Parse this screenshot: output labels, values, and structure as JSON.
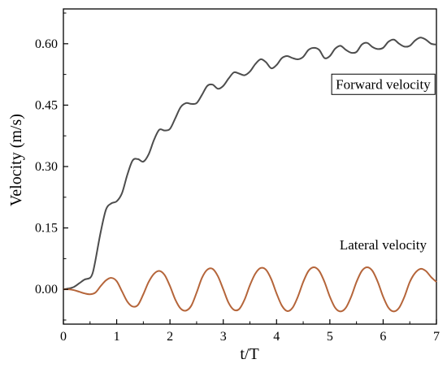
{
  "chart_data": {
    "type": "line",
    "xlabel": "t/T",
    "ylabel": "Velocity (m/s)",
    "xlim": [
      0,
      7
    ],
    "ylim": [
      -0.085,
      0.685
    ],
    "x_ticks": [
      0,
      1,
      2,
      3,
      4,
      5,
      6,
      7
    ],
    "x_tick_labels": [
      "0",
      "1",
      "2",
      "3",
      "4",
      "5",
      "6",
      "7"
    ],
    "y_ticks": [
      0.0,
      0.15,
      0.3,
      0.45,
      0.6
    ],
    "y_tick_labels": [
      "0.00",
      "0.15",
      "0.30",
      "0.45",
      "0.60"
    ],
    "grid": false,
    "series": [
      {
        "name": "Forward velocity",
        "color": "#4d4d4d",
        "x": [
          0,
          0.1,
          0.2,
          0.3,
          0.4,
          0.5,
          0.55,
          0.6,
          0.7,
          0.8,
          0.9,
          1.0,
          1.1,
          1.2,
          1.3,
          1.4,
          1.5,
          1.6,
          1.7,
          1.8,
          1.9,
          2.0,
          2.1,
          2.2,
          2.3,
          2.4,
          2.5,
          2.6,
          2.7,
          2.8,
          2.9,
          3.0,
          3.1,
          3.2,
          3.3,
          3.4,
          3.5,
          3.6,
          3.7,
          3.8,
          3.9,
          4.0,
          4.1,
          4.2,
          4.3,
          4.4,
          4.5,
          4.6,
          4.7,
          4.8,
          4.9,
          5.0,
          5.1,
          5.2,
          5.3,
          5.4,
          5.5,
          5.6,
          5.7,
          5.8,
          5.9,
          6.0,
          6.1,
          6.2,
          6.3,
          6.4,
          6.5,
          6.6,
          6.7,
          6.8,
          6.9,
          7.0
        ],
        "y": [
          0.0,
          0.002,
          0.006,
          0.015,
          0.024,
          0.028,
          0.04,
          0.07,
          0.14,
          0.195,
          0.21,
          0.215,
          0.235,
          0.28,
          0.315,
          0.318,
          0.312,
          0.33,
          0.365,
          0.39,
          0.388,
          0.392,
          0.418,
          0.445,
          0.455,
          0.453,
          0.455,
          0.475,
          0.497,
          0.5,
          0.49,
          0.497,
          0.515,
          0.53,
          0.527,
          0.523,
          0.532,
          0.55,
          0.562,
          0.555,
          0.54,
          0.548,
          0.565,
          0.57,
          0.565,
          0.562,
          0.568,
          0.585,
          0.59,
          0.585,
          0.565,
          0.57,
          0.588,
          0.595,
          0.585,
          0.578,
          0.58,
          0.598,
          0.602,
          0.592,
          0.587,
          0.59,
          0.605,
          0.61,
          0.6,
          0.593,
          0.595,
          0.608,
          0.615,
          0.61,
          0.6,
          0.598
        ]
      },
      {
        "name": "Lateral velocity",
        "color": "#b5653a",
        "x": [
          0,
          0.1,
          0.2,
          0.3,
          0.4,
          0.5,
          0.6,
          0.7,
          0.8,
          0.9,
          1.0,
          1.1,
          1.2,
          1.3,
          1.4,
          1.5,
          1.6,
          1.7,
          1.8,
          1.9,
          2.0,
          2.1,
          2.2,
          2.3,
          2.4,
          2.5,
          2.6,
          2.7,
          2.8,
          2.9,
          3.0,
          3.1,
          3.2,
          3.3,
          3.4,
          3.5,
          3.6,
          3.7,
          3.8,
          3.9,
          4.0,
          4.1,
          4.2,
          4.3,
          4.4,
          4.5,
          4.6,
          4.7,
          4.8,
          4.9,
          5.0,
          5.1,
          5.2,
          5.3,
          5.4,
          5.5,
          5.6,
          5.7,
          5.8,
          5.9,
          6.0,
          6.1,
          6.2,
          6.3,
          6.4,
          6.5,
          6.6,
          6.7,
          6.8,
          6.9,
          7.0
        ],
        "y": [
          0.0,
          0.0,
          -0.002,
          -0.006,
          -0.01,
          -0.012,
          -0.008,
          0.008,
          0.022,
          0.028,
          0.02,
          -0.005,
          -0.03,
          -0.042,
          -0.038,
          -0.012,
          0.018,
          0.038,
          0.045,
          0.035,
          0.008,
          -0.025,
          -0.047,
          -0.052,
          -0.04,
          -0.008,
          0.028,
          0.048,
          0.05,
          0.032,
          0.0,
          -0.033,
          -0.05,
          -0.048,
          -0.025,
          0.01,
          0.038,
          0.052,
          0.048,
          0.025,
          -0.01,
          -0.04,
          -0.053,
          -0.045,
          -0.018,
          0.018,
          0.045,
          0.054,
          0.045,
          0.018,
          -0.018,
          -0.045,
          -0.054,
          -0.045,
          -0.018,
          0.018,
          0.045,
          0.054,
          0.045,
          0.018,
          -0.018,
          -0.045,
          -0.054,
          -0.045,
          -0.018,
          0.018,
          0.04,
          0.05,
          0.045,
          0.03,
          0.018
        ]
      }
    ],
    "annotations": [
      {
        "text": "Forward velocity",
        "boxed": true,
        "x": 6.0,
        "y": 0.49
      },
      {
        "text": "Lateral velocity",
        "boxed": false,
        "x": 6.0,
        "y": 0.098
      }
    ]
  }
}
